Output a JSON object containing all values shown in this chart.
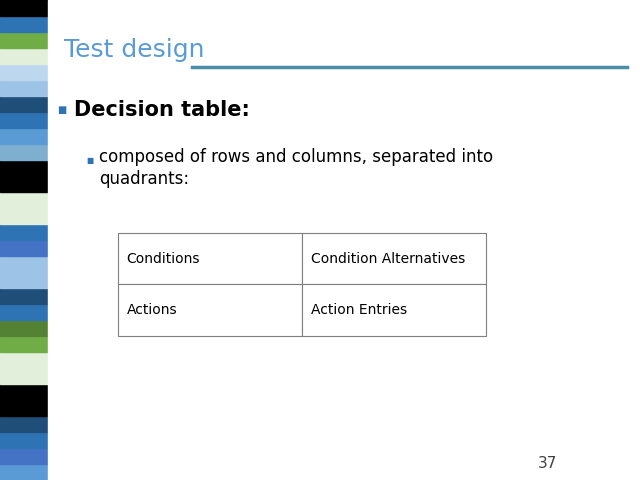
{
  "title": "Test design",
  "title_color": "#5b9bd5",
  "title_fontsize": 18,
  "bg_color": "#ffffff",
  "left_bar_colors": [
    "#5b9bd5",
    "#4472c4",
    "#2e74b5",
    "#1f4e79",
    "#000000",
    "#000000",
    "#e2efda",
    "#e2efda",
    "#70ad47",
    "#548235",
    "#2e74b5",
    "#1f4e79",
    "#9dc3e6",
    "#9dc3e6",
    "#4472c4",
    "#2e74b5",
    "#e2efda",
    "#e2efda",
    "#000000",
    "#000000",
    "#7fafcf",
    "#5b9bd5",
    "#2e74b5",
    "#1f4e79",
    "#9dc3e6",
    "#bdd7ee",
    "#e2efda",
    "#70ad47",
    "#2e74b5",
    "#000000"
  ],
  "bullet1_text": "Decision table:",
  "bullet1_fontsize": 15,
  "bullet2_line1": "composed of rows and columns, separated into",
  "bullet2_line2": "quadrants:",
  "bullet2_fontsize": 12,
  "bullet_color": "#000000",
  "bullet1_marker_color": "#2e74b5",
  "bullet2_marker_color": "#2e74b5",
  "table_cells": [
    [
      "Conditions",
      "Condition Alternatives"
    ],
    [
      "Actions",
      "Action Entries"
    ]
  ],
  "table_fontsize": 10,
  "table_text_color": "#000000",
  "table_border_color": "#7f7f7f",
  "table_bg_color": "#ffffff",
  "line_color": "#4a8fa8",
  "page_number": "37",
  "page_number_color": "#404040",
  "page_number_fontsize": 11
}
